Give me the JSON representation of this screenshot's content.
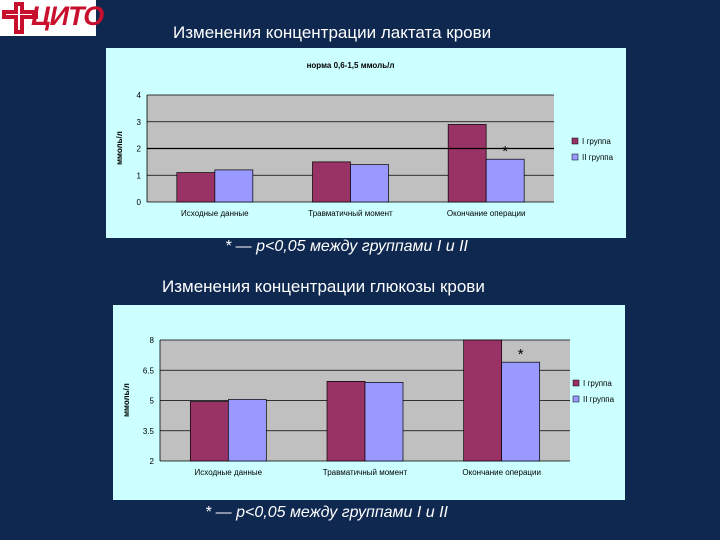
{
  "logo": {
    "text": "ЦИТО"
  },
  "colors": {
    "group1": "#993366",
    "group2": "#9999ff",
    "chart1_bg": "#ccffff",
    "chart2_bg": "#ccffff",
    "plot_bg": "#c0c0c0",
    "page_bg": "#0f2850"
  },
  "chart_data": [
    {
      "type": "bar",
      "title": "Изменения концентрации лактата крови",
      "inner_title": "норма 0,6-1,5 ммоль/л",
      "ylabel": "ммоль/л",
      "xlabel": "",
      "ylim": [
        0,
        4
      ],
      "yticks": [
        "0",
        "1",
        "2",
        "3",
        "4"
      ],
      "categories": [
        "Исходные данные",
        "Травматичный момент",
        "Окончание операции"
      ],
      "series": [
        {
          "name": "I группа",
          "values": [
            1.1,
            1.5,
            2.9
          ]
        },
        {
          "name": "II группа",
          "values": [
            1.2,
            1.4,
            1.6
          ]
        }
      ],
      "reference_line": 2,
      "annotation": "*",
      "legend": "right",
      "note": "* — p<0,05 между группами I и II"
    },
    {
      "type": "bar",
      "title": "Изменения концентрации глюкозы крови",
      "ylabel": "ммоль/л",
      "xlabel": "",
      "ylim": [
        2,
        8
      ],
      "yticks": [
        "2",
        "3.5",
        "5",
        "6.5",
        "8"
      ],
      "categories": [
        "Исходные данные",
        "Травматичный момент",
        "Окончание операции"
      ],
      "series": [
        {
          "name": "I группа",
          "values": [
            4.95,
            5.95,
            8.0
          ]
        },
        {
          "name": "II группа",
          "values": [
            5.05,
            5.9,
            6.9
          ]
        }
      ],
      "annotation": "*",
      "legend": "right",
      "note": "* — p<0,05 между группами I и II"
    }
  ]
}
